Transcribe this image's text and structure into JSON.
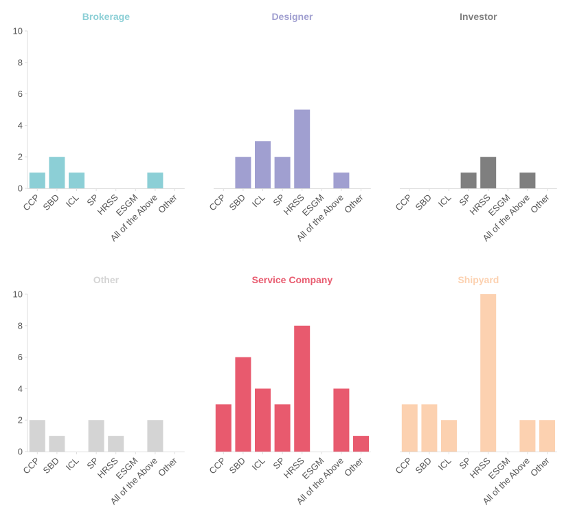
{
  "chart_data": [
    {
      "type": "bar",
      "title": "Brokerage",
      "color": "#8ccfd6",
      "categories": [
        "CCP",
        "SBD",
        "ICL",
        "SP",
        "HRSS",
        "ESGM",
        "All of the Above",
        "Other"
      ],
      "values": [
        1,
        2,
        1,
        0,
        0,
        0,
        1,
        0
      ],
      "ylim": [
        0,
        10
      ],
      "yticks": [
        0,
        2,
        4,
        6,
        8,
        10
      ],
      "grid": false
    },
    {
      "type": "bar",
      "title": "Designer",
      "color": "#a09fd0",
      "categories": [
        "CCP",
        "SBD",
        "ICL",
        "SP",
        "HRSS",
        "ESGM",
        "All of the Above",
        "Other"
      ],
      "values": [
        0,
        2,
        3,
        2,
        5,
        0,
        1,
        0
      ],
      "ylim": [
        0,
        10
      ],
      "yticks": [
        0,
        2,
        4,
        6,
        8,
        10
      ],
      "grid": false
    },
    {
      "type": "bar",
      "title": "Investor",
      "color": "#7f7f7f",
      "categories": [
        "CCP",
        "SBD",
        "ICL",
        "SP",
        "HRSS",
        "ESGM",
        "All of the Above",
        "Other"
      ],
      "values": [
        0,
        0,
        0,
        1,
        2,
        0,
        1,
        0
      ],
      "ylim": [
        0,
        10
      ],
      "yticks": [
        0,
        2,
        4,
        6,
        8,
        10
      ],
      "grid": false
    },
    {
      "type": "bar",
      "title": "Other",
      "color": "#d4d4d4",
      "categories": [
        "CCP",
        "SBD",
        "ICL",
        "SP",
        "HRSS",
        "ESGM",
        "All of the Above",
        "Other"
      ],
      "values": [
        2,
        1,
        0,
        2,
        1,
        0,
        2,
        0
      ],
      "ylim": [
        0,
        10
      ],
      "yticks": [
        0,
        2,
        4,
        6,
        8,
        10
      ],
      "grid": false
    },
    {
      "type": "bar",
      "title": "Service Company",
      "color": "#e85a6e",
      "categories": [
        "CCP",
        "SBD",
        "ICL",
        "SP",
        "HRSS",
        "ESGM",
        "All of the Above",
        "Other"
      ],
      "values": [
        3,
        6,
        4,
        3,
        8,
        0,
        4,
        1
      ],
      "ylim": [
        0,
        10
      ],
      "yticks": [
        0,
        2,
        4,
        6,
        8,
        10
      ],
      "grid": false
    },
    {
      "type": "bar",
      "title": "Shipyard",
      "color": "#fcd1b0",
      "categories": [
        "CCP",
        "SBD",
        "ICL",
        "SP",
        "HRSS",
        "ESGM",
        "All of the Above",
        "Other"
      ],
      "values": [
        3,
        3,
        2,
        0,
        10,
        0,
        2,
        2
      ],
      "ylim": [
        0,
        10
      ],
      "yticks": [
        0,
        2,
        4,
        6,
        8,
        10
      ],
      "grid": false
    }
  ]
}
